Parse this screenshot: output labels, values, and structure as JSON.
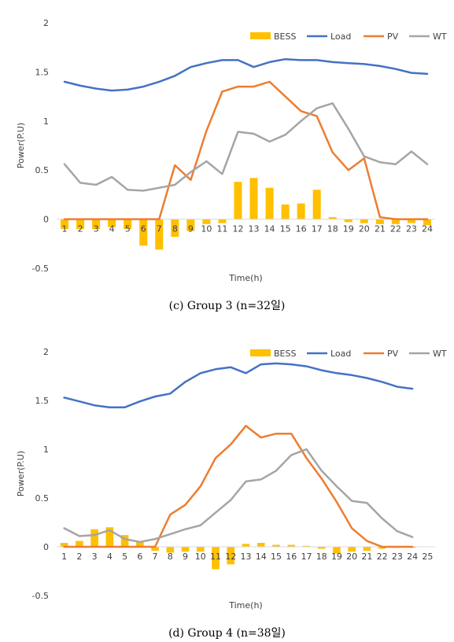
{
  "chart_data": [
    {
      "type": "bar+line",
      "title": "",
      "xlabel": "Time(h)",
      "ylabel": "Power(P.U)",
      "ylim": [
        -0.5,
        2
      ],
      "yticks": [
        "-0.5",
        "0",
        "0.5",
        "1",
        "1.5",
        "2"
      ],
      "categories": [
        "1",
        "2",
        "3",
        "4",
        "5",
        "6",
        "7",
        "8",
        "9",
        "10",
        "11",
        "12",
        "13",
        "14",
        "15",
        "16",
        "17",
        "18",
        "19",
        "20",
        "21",
        "22",
        "23",
        "24"
      ],
      "legend": "top-right",
      "grid": false,
      "series": [
        {
          "name": "BESS",
          "kind": "bar",
          "color": "#FFC000",
          "values": [
            -0.1,
            -0.1,
            -0.1,
            -0.08,
            -0.1,
            -0.27,
            -0.31,
            -0.18,
            -0.12,
            -0.05,
            -0.04,
            0.38,
            0.42,
            0.32,
            0.15,
            0.16,
            0.3,
            0.02,
            -0.03,
            -0.04,
            -0.05,
            -0.05,
            -0.04,
            -0.06
          ]
        },
        {
          "name": "Load",
          "kind": "line",
          "color": "#4472C4",
          "values": [
            1.4,
            1.36,
            1.33,
            1.31,
            1.32,
            1.35,
            1.4,
            1.46,
            1.55,
            1.59,
            1.62,
            1.62,
            1.55,
            1.6,
            1.63,
            1.62,
            1.62,
            1.6,
            1.59,
            1.58,
            1.56,
            1.53,
            1.49,
            1.48
          ]
        },
        {
          "name": "PV",
          "kind": "line",
          "color": "#ED7D31",
          "values": [
            0,
            0,
            0,
            0,
            0,
            0,
            0,
            0.55,
            0.4,
            0.9,
            1.3,
            1.35,
            1.35,
            1.4,
            1.25,
            1.1,
            1.05,
            0.68,
            0.5,
            0.62,
            0.02,
            0,
            0,
            0
          ]
        },
        {
          "name": "WT",
          "kind": "line",
          "color": "#A5A5A5",
          "values": [
            0.56,
            0.37,
            0.35,
            0.43,
            0.3,
            0.29,
            0.32,
            0.35,
            0.48,
            0.59,
            0.46,
            0.89,
            0.87,
            0.79,
            0.86,
            1.0,
            1.13,
            1.18,
            0.92,
            0.64,
            0.58,
            0.56,
            0.69,
            0.56
          ]
        }
      ]
    },
    {
      "type": "bar+line",
      "title": "",
      "xlabel": "Time(h)",
      "ylabel": "Power(P.U)",
      "ylim": [
        -0.5,
        2
      ],
      "yticks": [
        "-0.5",
        "0",
        "0.5",
        "1",
        "1.5",
        "2"
      ],
      "categories": [
        "1",
        "2",
        "3",
        "4",
        "5",
        "6",
        "7",
        "8",
        "9",
        "10",
        "11",
        "12",
        "13",
        "14",
        "15",
        "16",
        "17",
        "18",
        "19",
        "20",
        "21",
        "22",
        "23",
        "24",
        "25"
      ],
      "legend": "top-right",
      "grid": false,
      "series": [
        {
          "name": "BESS",
          "kind": "bar",
          "color": "#FFC000",
          "values": [
            0.04,
            0.06,
            0.18,
            0.2,
            0.12,
            0.05,
            -0.04,
            -0.06,
            -0.05,
            -0.05,
            -0.23,
            -0.18,
            0.03,
            0.04,
            0.02,
            0.02,
            0.01,
            -0.02,
            -0.07,
            -0.05,
            -0.04,
            -0.02,
            -0.01,
            -0.01,
            null
          ]
        },
        {
          "name": "Load",
          "kind": "line",
          "color": "#4472C4",
          "values": [
            1.53,
            1.49,
            1.45,
            1.43,
            1.43,
            1.49,
            1.54,
            1.57,
            1.69,
            1.78,
            1.82,
            1.84,
            1.78,
            1.87,
            1.88,
            1.87,
            1.85,
            1.81,
            1.78,
            1.76,
            1.73,
            1.69,
            1.64,
            1.62,
            null
          ]
        },
        {
          "name": "PV",
          "kind": "line",
          "color": "#ED7D31",
          "values": [
            0,
            0,
            0,
            0,
            0,
            0,
            0,
            0.33,
            0.43,
            0.62,
            0.91,
            1.05,
            1.24,
            1.12,
            1.16,
            1.16,
            0.91,
            0.7,
            0.46,
            0.19,
            0.06,
            0,
            0,
            0,
            null
          ]
        },
        {
          "name": "WT",
          "kind": "line",
          "color": "#A5A5A5",
          "values": [
            0.19,
            0.11,
            0.12,
            0.17,
            0.08,
            0.05,
            0.08,
            0.13,
            0.18,
            0.22,
            0.35,
            0.48,
            0.67,
            0.69,
            0.78,
            0.94,
            1.0,
            0.78,
            0.62,
            0.47,
            0.45,
            0.29,
            0.16,
            0.1,
            null
          ]
        }
      ]
    }
  ],
  "captions": [
    "(c) Group 3 (n=32일)",
    "(d) Group 4 (n=38일)"
  ]
}
